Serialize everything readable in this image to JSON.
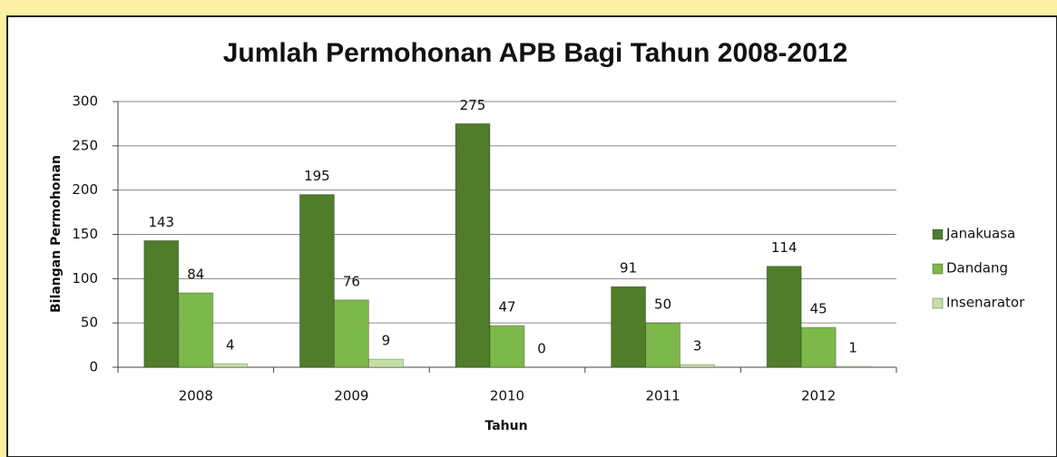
{
  "chart_data": {
    "type": "bar",
    "title": "Jumlah Permohonan APB Bagi Tahun 2008-2012",
    "x_label": "Tahun",
    "y_label": "Bilangan  Permohonan",
    "categories": [
      "2008",
      "2009",
      "2010",
      "2011",
      "2012"
    ],
    "series": [
      {
        "name": "Janakuasa",
        "color": "#4f7d2a",
        "values": [
          143,
          195,
          275,
          91,
          114
        ]
      },
      {
        "name": "Dandang",
        "color": "#7db84a",
        "values": [
          84,
          76,
          47,
          50,
          45
        ]
      },
      {
        "name": "Insenarator",
        "color": "#c5e0a6",
        "values": [
          4,
          9,
          0,
          3,
          1
        ]
      }
    ],
    "ylim": [
      0,
      300
    ],
    "yticks": [
      0,
      50,
      100,
      150,
      200,
      250,
      300
    ],
    "grid": true,
    "legend": "right"
  }
}
